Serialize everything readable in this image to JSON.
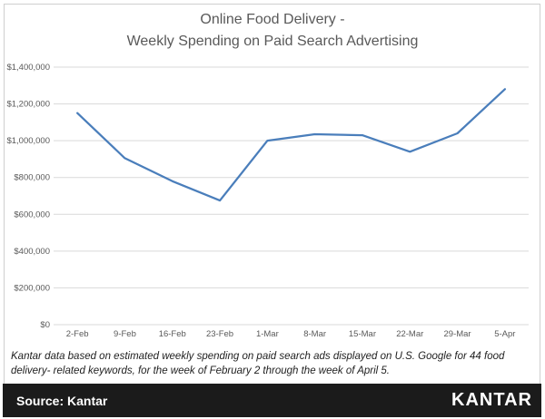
{
  "title": {
    "line1": "Online Food Delivery -",
    "line2": "Weekly Spending on Paid Search Advertising"
  },
  "chart_data": {
    "type": "line",
    "title": "Online Food Delivery - Weekly Spending on Paid Search Advertising",
    "categories": [
      "2-Feb",
      "9-Feb",
      "16-Feb",
      "23-Feb",
      "1-Mar",
      "8-Mar",
      "15-Mar",
      "22-Mar",
      "29-Mar",
      "5-Apr"
    ],
    "values": [
      1150000,
      905000,
      780000,
      675000,
      1000000,
      1035000,
      1030000,
      940000,
      1040000,
      1280000
    ],
    "xlabel": "",
    "ylabel": "",
    "ylim": [
      0,
      1400000
    ],
    "y_tick_step": 200000,
    "y_tick_labels": [
      "$0",
      "$200,000",
      "$400,000",
      "$600,000",
      "$800,000",
      "$1,000,000",
      "$1,200,000",
      "$1,400,000"
    ],
    "grid": true,
    "legend_position": "none",
    "line_color": "#4a7ebb",
    "grid_color": "#d9d9d9",
    "axis_text_color": "#595959"
  },
  "footnote": {
    "line1": "Kantar data based on estimated weekly spending on paid search ads displayed on U.S. Google for 44 food delivery-",
    "line2": "related keywords, for the week of February 2 through the week of April 5."
  },
  "source_bar": {
    "label": "Source: Kantar",
    "brand": "KANTAR",
    "background": "#1b1b1b",
    "text_color": "#ffffff"
  }
}
